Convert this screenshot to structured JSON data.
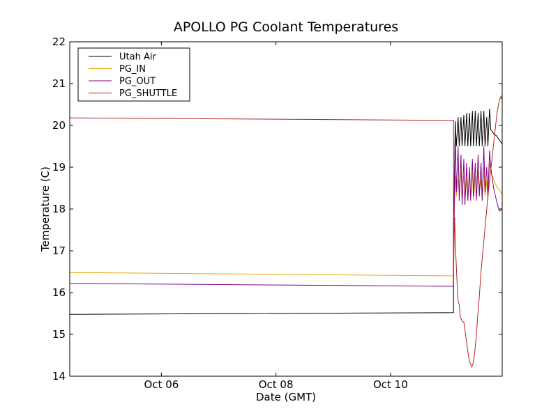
{
  "chart_data": {
    "type": "line",
    "title": "APOLLO PG Coolant Temperatures",
    "xlabel": "Date (GMT)",
    "ylabel": "Temperature (C)",
    "xlim": [
      4.4,
      11.95
    ],
    "ylim": [
      14,
      22
    ],
    "xticks": [
      {
        "value": 6,
        "label": "Oct 06"
      },
      {
        "value": 8,
        "label": "Oct 08"
      },
      {
        "value": 10,
        "label": "Oct 10"
      }
    ],
    "yticks": [
      {
        "value": 14,
        "label": "14"
      },
      {
        "value": 15,
        "label": "15"
      },
      {
        "value": 16,
        "label": "16"
      },
      {
        "value": 17,
        "label": "17"
      },
      {
        "value": 18,
        "label": "18"
      },
      {
        "value": 19,
        "label": "19"
      },
      {
        "value": 20,
        "label": "20"
      },
      {
        "value": 21,
        "label": "21"
      },
      {
        "value": 22,
        "label": "22"
      }
    ],
    "legend_position": "top-left",
    "series": [
      {
        "name": "Utah Air",
        "color": "#000000",
        "x": [
          4.4,
          11.1,
          11.1,
          11.13,
          11.15,
          11.18,
          11.2,
          11.23,
          11.25,
          11.28,
          11.3,
          11.33,
          11.35,
          11.38,
          11.4,
          11.43,
          11.45,
          11.48,
          11.5,
          11.53,
          11.55,
          11.58,
          11.6,
          11.63,
          11.65,
          11.68,
          11.7,
          11.73,
          11.75,
          11.78,
          11.8,
          11.85,
          11.9,
          11.95
        ],
        "values": [
          15.48,
          15.52,
          17.5,
          20.1,
          19.5,
          20.2,
          19.5,
          20.2,
          19.5,
          20.25,
          19.5,
          20.3,
          19.5,
          20.3,
          19.5,
          20.35,
          19.5,
          20.35,
          19.5,
          20.3,
          19.5,
          20.35,
          19.5,
          20.35,
          19.5,
          20.2,
          19.5,
          20.4,
          19.9,
          19.85,
          19.8,
          19.75,
          19.65,
          19.55
        ]
      },
      {
        "name": "PG_IN",
        "color": "#e6a800",
        "x": [
          4.4,
          11.1,
          11.1,
          11.13,
          11.15,
          11.18,
          11.2,
          11.23,
          11.25,
          11.28,
          11.3,
          11.33,
          11.35,
          11.38,
          11.4,
          11.43,
          11.45,
          11.48,
          11.5,
          11.53,
          11.55,
          11.58,
          11.6,
          11.63,
          11.65,
          11.68,
          11.7,
          11.73,
          11.75,
          11.8,
          11.85,
          11.9,
          11.95
        ],
        "values": [
          16.48,
          16.4,
          17.0,
          18.8,
          18.3,
          18.7,
          18.4,
          18.9,
          18.3,
          18.8,
          18.2,
          18.7,
          18.2,
          18.8,
          18.3,
          18.9,
          18.2,
          18.8,
          18.3,
          18.9,
          18.4,
          18.7,
          18.2,
          19.0,
          18.3,
          18.7,
          18.2,
          19.1,
          18.9,
          18.7,
          18.55,
          18.45,
          18.35
        ]
      },
      {
        "name": "PG_OUT",
        "color": "#800080",
        "x": [
          4.4,
          11.1,
          11.1,
          11.13,
          11.15,
          11.18,
          11.2,
          11.23,
          11.25,
          11.28,
          11.3,
          11.33,
          11.35,
          11.38,
          11.4,
          11.43,
          11.45,
          11.48,
          11.5,
          11.53,
          11.55,
          11.58,
          11.6,
          11.63,
          11.65,
          11.68,
          11.7,
          11.73,
          11.75,
          11.8,
          11.85,
          11.9,
          11.95
        ],
        "values": [
          16.22,
          16.15,
          16.7,
          19.9,
          18.4,
          19.5,
          18.2,
          19.3,
          18.1,
          19.2,
          18.1,
          19.1,
          18.2,
          19.0,
          18.2,
          19.2,
          18.3,
          19.1,
          18.2,
          19.3,
          18.3,
          19.1,
          18.2,
          19.5,
          18.4,
          19.0,
          18.3,
          19.4,
          19.0,
          18.5,
          18.2,
          17.95,
          18.0
        ]
      },
      {
        "name": "PG_SHUTTLE",
        "color": "#b22222",
        "x": [
          4.4,
          11.1,
          11.1,
          11.12,
          11.14,
          11.16,
          11.18,
          11.2,
          11.22,
          11.24,
          11.26,
          11.28,
          11.3,
          11.32,
          11.34,
          11.36,
          11.38,
          11.4,
          11.42,
          11.44,
          11.46,
          11.48,
          11.5,
          11.52,
          11.55,
          11.58,
          11.62,
          11.66,
          11.7,
          11.74,
          11.78,
          11.82,
          11.86,
          11.9,
          11.93,
          11.95
        ],
        "values": [
          20.18,
          20.12,
          16.5,
          17.8,
          16.9,
          16.3,
          15.8,
          15.7,
          15.4,
          15.35,
          15.3,
          15.3,
          15.1,
          14.9,
          14.7,
          14.5,
          14.35,
          14.28,
          14.22,
          14.3,
          14.45,
          14.7,
          15.0,
          15.4,
          15.9,
          16.5,
          17.1,
          17.7,
          18.3,
          18.8,
          19.3,
          19.8,
          20.3,
          20.6,
          20.7,
          20.6
        ]
      }
    ]
  }
}
